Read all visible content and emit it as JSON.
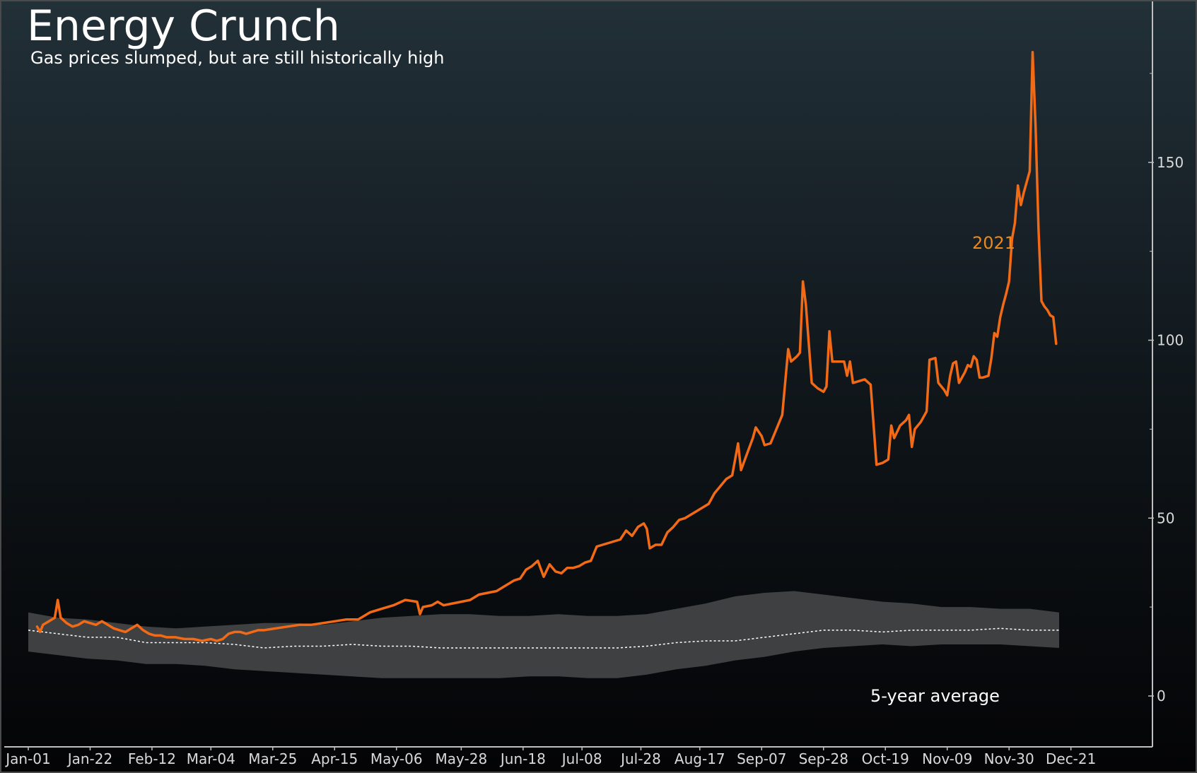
{
  "header": {
    "title": "Energy Crunch",
    "subtitle": "Gas prices slumped, but are still historically high"
  },
  "chart_data": {
    "type": "line",
    "xaxis": {
      "tick_labels": [
        "Jan-01",
        "Jan-22",
        "Feb-12",
        "Mar-04",
        "Mar-25",
        "Apr-15",
        "May-06",
        "May-28",
        "Jun-18",
        "Jul-08",
        "Jul-28",
        "Aug-17",
        "Sep-07",
        "Sep-28",
        "Oct-19",
        "Nov-09",
        "Nov-30",
        "Dec-21"
      ],
      "tick_days": [
        0,
        21,
        42,
        62,
        83,
        104,
        125,
        147,
        168,
        188,
        208,
        228,
        249,
        270,
        291,
        312,
        333,
        354
      ]
    },
    "yaxis": {
      "position": "right",
      "ticks": [
        0,
        50,
        100,
        150
      ],
      "ylim": [
        -15,
        195
      ]
    },
    "grid": false,
    "series": [
      {
        "name": "2021",
        "color": "#f26a16",
        "label_color": "#e88a1e",
        "points": [
          [
            3,
            19.5
          ],
          [
            4,
            18
          ],
          [
            5,
            20
          ],
          [
            7,
            21
          ],
          [
            9,
            22
          ],
          [
            10,
            27
          ],
          [
            11,
            22
          ],
          [
            13,
            20.5
          ],
          [
            15,
            19.5
          ],
          [
            17,
            20
          ],
          [
            19,
            21
          ],
          [
            21,
            20.5
          ],
          [
            23,
            20
          ],
          [
            25,
            21
          ],
          [
            27,
            20
          ],
          [
            29,
            19
          ],
          [
            31,
            18.5
          ],
          [
            33,
            18
          ],
          [
            35,
            19
          ],
          [
            37,
            20
          ],
          [
            39,
            18.5
          ],
          [
            41,
            17.5
          ],
          [
            43,
            17
          ],
          [
            45,
            17
          ],
          [
            47,
            16.5
          ],
          [
            50,
            16.5
          ],
          [
            53,
            16
          ],
          [
            56,
            16
          ],
          [
            59,
            15.5
          ],
          [
            62,
            16
          ],
          [
            64,
            15.5
          ],
          [
            66,
            16
          ],
          [
            68,
            17.5
          ],
          [
            70,
            18
          ],
          [
            72,
            18
          ],
          [
            74,
            17.5
          ],
          [
            76,
            18
          ],
          [
            78,
            18.5
          ],
          [
            80,
            18.5
          ],
          [
            84,
            19
          ],
          [
            88,
            19.5
          ],
          [
            92,
            20
          ],
          [
            96,
            20
          ],
          [
            100,
            20.5
          ],
          [
            104,
            21
          ],
          [
            108,
            21.5
          ],
          [
            112,
            21.5
          ],
          [
            116,
            23.5
          ],
          [
            120,
            24.5
          ],
          [
            124,
            25.5
          ],
          [
            128,
            27
          ],
          [
            132,
            26.5
          ],
          [
            133,
            23
          ],
          [
            134,
            25
          ],
          [
            137,
            25.5
          ],
          [
            139,
            26.5
          ],
          [
            141,
            25.5
          ],
          [
            144,
            26
          ],
          [
            147,
            26.5
          ],
          [
            150,
            27
          ],
          [
            153,
            28.5
          ],
          [
            156,
            29
          ],
          [
            159,
            29.5
          ],
          [
            162,
            31
          ],
          [
            165,
            32.5
          ],
          [
            167,
            33
          ],
          [
            169,
            35.5
          ],
          [
            171,
            36.5
          ],
          [
            173,
            38
          ],
          [
            175,
            33.5
          ],
          [
            177,
            37
          ],
          [
            179,
            35
          ],
          [
            181,
            34.5
          ],
          [
            183,
            36
          ],
          [
            185,
            36
          ],
          [
            187,
            36.5
          ],
          [
            189,
            37.5
          ],
          [
            191,
            38
          ],
          [
            193,
            42
          ],
          [
            195,
            42.5
          ],
          [
            197,
            43
          ],
          [
            199,
            43.5
          ],
          [
            201,
            44
          ],
          [
            203,
            46.5
          ],
          [
            205,
            45
          ],
          [
            207,
            47.5
          ],
          [
            209,
            48.5
          ],
          [
            210,
            47
          ],
          [
            211,
            41.5
          ],
          [
            213,
            42.5
          ],
          [
            215,
            42.5
          ],
          [
            217,
            46
          ],
          [
            219,
            47.5
          ],
          [
            221,
            49.5
          ],
          [
            223,
            50
          ],
          [
            225,
            51
          ],
          [
            227,
            52
          ],
          [
            229,
            53
          ],
          [
            231,
            54
          ],
          [
            233,
            57
          ],
          [
            235,
            59
          ],
          [
            237,
            61
          ],
          [
            239,
            62
          ],
          [
            241,
            71
          ],
          [
            242,
            63.5
          ],
          [
            244,
            68
          ],
          [
            246,
            72.5
          ],
          [
            247,
            75.5
          ],
          [
            249,
            73
          ],
          [
            250,
            70.5
          ],
          [
            252,
            71
          ],
          [
            254,
            75
          ],
          [
            256,
            79
          ],
          [
            258,
            97.5
          ],
          [
            259,
            94
          ],
          [
            261,
            95.5
          ],
          [
            262,
            96.5
          ],
          [
            263,
            116.5
          ],
          [
            264,
            110
          ],
          [
            266,
            88
          ],
          [
            268,
            86.5
          ],
          [
            270,
            85.5
          ],
          [
            271,
            87
          ],
          [
            272,
            102.5
          ],
          [
            273,
            94
          ],
          [
            275,
            94
          ],
          [
            277,
            94
          ],
          [
            278,
            90
          ],
          [
            279,
            94
          ],
          [
            280,
            88
          ],
          [
            282,
            88.5
          ],
          [
            284,
            89
          ],
          [
            286,
            87.5
          ],
          [
            288,
            65
          ],
          [
            290,
            65.5
          ],
          [
            292,
            66.5
          ],
          [
            293,
            76
          ],
          [
            294,
            72.5
          ],
          [
            296,
            76
          ],
          [
            298,
            77.5
          ],
          [
            299,
            79
          ],
          [
            300,
            70
          ],
          [
            301,
            75
          ],
          [
            303,
            77
          ],
          [
            305,
            80
          ],
          [
            306,
            94.5
          ],
          [
            308,
            95
          ],
          [
            309,
            88
          ],
          [
            311,
            86
          ],
          [
            312,
            84.5
          ],
          [
            313,
            90
          ],
          [
            314,
            93.5
          ],
          [
            315,
            94
          ],
          [
            316,
            88
          ],
          [
            318,
            91
          ],
          [
            319,
            93
          ],
          [
            320,
            92.5
          ],
          [
            321,
            95.5
          ],
          [
            322,
            94.5
          ],
          [
            323,
            89.5
          ],
          [
            324,
            89.5
          ],
          [
            326,
            90
          ],
          [
            327,
            95
          ],
          [
            328,
            102
          ],
          [
            329,
            101
          ],
          [
            330,
            106.5
          ],
          [
            331,
            110
          ],
          [
            332,
            113
          ],
          [
            333,
            116.5
          ],
          [
            334,
            128.5
          ],
          [
            335,
            133
          ],
          [
            336,
            143.5
          ],
          [
            337,
            138
          ],
          [
            338,
            141.5
          ],
          [
            339,
            144.5
          ],
          [
            340,
            147.5
          ],
          [
            341,
            181
          ],
          [
            342,
            160
          ],
          [
            343,
            131
          ],
          [
            344,
            111
          ],
          [
            345,
            109.5
          ],
          [
            346,
            108.5
          ],
          [
            347,
            107
          ],
          [
            348,
            106.5
          ],
          [
            349,
            99
          ]
        ]
      },
      {
        "name": "5-year average",
        "color": "#ffffff",
        "band_color": "#3f4042",
        "mean": [
          [
            0,
            18.5
          ],
          [
            10,
            17.5
          ],
          [
            20,
            16.5
          ],
          [
            30,
            16.5
          ],
          [
            40,
            15
          ],
          [
            50,
            15
          ],
          [
            60,
            15
          ],
          [
            70,
            14.5
          ],
          [
            80,
            13.5
          ],
          [
            90,
            14
          ],
          [
            100,
            14
          ],
          [
            110,
            14.5
          ],
          [
            120,
            14
          ],
          [
            130,
            14
          ],
          [
            140,
            13.5
          ],
          [
            150,
            13.5
          ],
          [
            160,
            13.5
          ],
          [
            170,
            13.5
          ],
          [
            180,
            13.5
          ],
          [
            190,
            13.5
          ],
          [
            200,
            13.5
          ],
          [
            210,
            14
          ],
          [
            220,
            15
          ],
          [
            230,
            15.5
          ],
          [
            240,
            15.5
          ],
          [
            250,
            16.5
          ],
          [
            260,
            17.5
          ],
          [
            270,
            18.5
          ],
          [
            280,
            18.5
          ],
          [
            290,
            18
          ],
          [
            300,
            18.5
          ],
          [
            310,
            18.5
          ],
          [
            320,
            18.5
          ],
          [
            330,
            19
          ],
          [
            340,
            18.5
          ],
          [
            350,
            18.5
          ]
        ],
        "band_upper": [
          [
            0,
            23.5
          ],
          [
            10,
            22
          ],
          [
            20,
            21.5
          ],
          [
            30,
            20.5
          ],
          [
            40,
            19.5
          ],
          [
            50,
            19
          ],
          [
            60,
            19.5
          ],
          [
            70,
            20
          ],
          [
            80,
            20.5
          ],
          [
            90,
            20.5
          ],
          [
            100,
            20
          ],
          [
            110,
            21
          ],
          [
            120,
            22
          ],
          [
            130,
            22.5
          ],
          [
            140,
            23
          ],
          [
            150,
            23
          ],
          [
            160,
            22.5
          ],
          [
            170,
            22.5
          ],
          [
            180,
            23
          ],
          [
            190,
            22.5
          ],
          [
            200,
            22.5
          ],
          [
            210,
            23
          ],
          [
            220,
            24.5
          ],
          [
            230,
            26
          ],
          [
            240,
            28
          ],
          [
            250,
            29
          ],
          [
            260,
            29.5
          ],
          [
            270,
            28.5
          ],
          [
            280,
            27.5
          ],
          [
            290,
            26.5
          ],
          [
            300,
            26
          ],
          [
            310,
            25
          ],
          [
            320,
            25
          ],
          [
            330,
            24.5
          ],
          [
            340,
            24.5
          ],
          [
            350,
            23.5
          ]
        ],
        "band_lower": [
          [
            0,
            12.5
          ],
          [
            10,
            11.5
          ],
          [
            20,
            10.5
          ],
          [
            30,
            10
          ],
          [
            40,
            9
          ],
          [
            50,
            9
          ],
          [
            60,
            8.5
          ],
          [
            70,
            7.5
          ],
          [
            80,
            7
          ],
          [
            90,
            6.5
          ],
          [
            100,
            6
          ],
          [
            110,
            5.5
          ],
          [
            120,
            5
          ],
          [
            130,
            5
          ],
          [
            140,
            5
          ],
          [
            150,
            5
          ],
          [
            160,
            5
          ],
          [
            170,
            5.5
          ],
          [
            180,
            5.5
          ],
          [
            190,
            5
          ],
          [
            200,
            5
          ],
          [
            210,
            6
          ],
          [
            220,
            7.5
          ],
          [
            230,
            8.5
          ],
          [
            240,
            10
          ],
          [
            250,
            11
          ],
          [
            260,
            12.5
          ],
          [
            270,
            13.5
          ],
          [
            280,
            14
          ],
          [
            290,
            14.5
          ],
          [
            300,
            14
          ],
          [
            310,
            14.5
          ],
          [
            320,
            14.5
          ],
          [
            330,
            14.5
          ],
          [
            340,
            14
          ],
          [
            350,
            13.5
          ]
        ]
      }
    ]
  },
  "colors": {
    "background_top": "#223038",
    "background_bottom": "#040406",
    "axis": "#bfbfbf",
    "tick_text": "#d9d9d9"
  }
}
